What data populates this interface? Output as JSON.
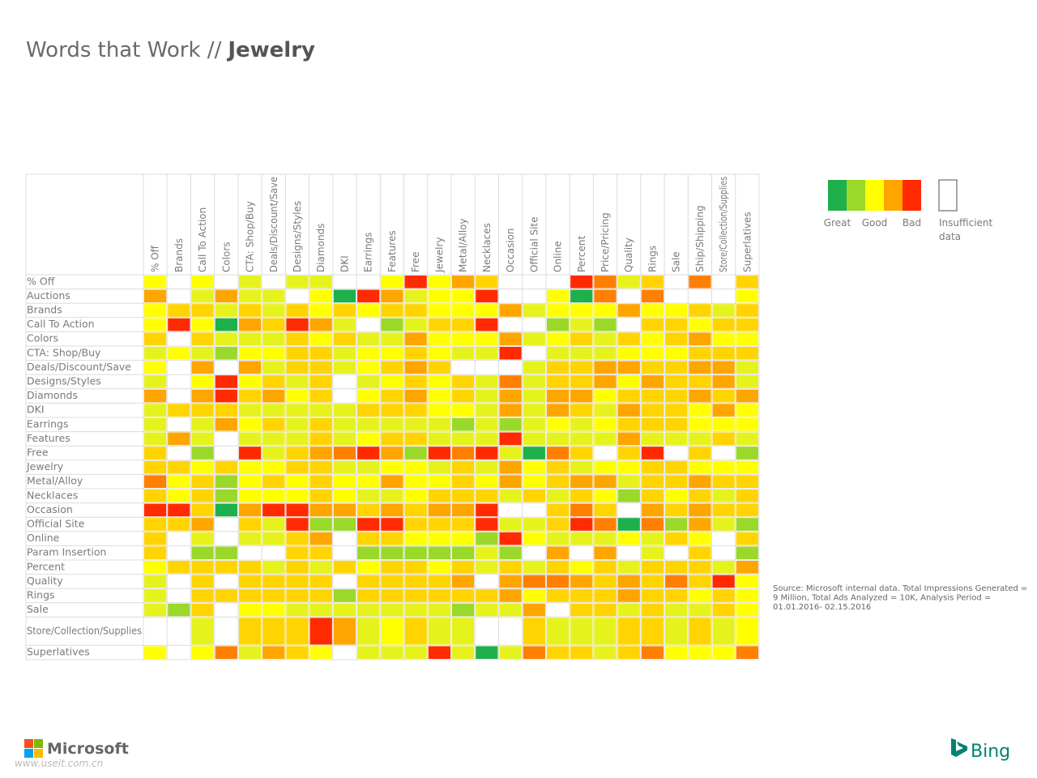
{
  "chart_data": {
    "type": "heatmap",
    "title": "Words that Work //",
    "title_emphasis": "Jewelry",
    "columns": [
      "% Off",
      "Brands",
      "Call To Action",
      "Colors",
      "CTA: Shop/Buy",
      "Deals/Discount/Save",
      "Designs/Styles",
      "Diamonds",
      "DKI",
      "Earrings",
      "Features",
      "Free",
      "Jewelry",
      "Metal/Alloy",
      "Necklaces",
      "Occasion",
      "Official Site",
      "Online",
      "Percent",
      "Price/Pricing",
      "Quality",
      "Rings",
      "Sale",
      "Ship/Shipping",
      "Store/Collection/Supplies",
      "Superlatives"
    ],
    "rows": [
      "% Off",
      "Auctions",
      "Brands",
      "Call To Action",
      "Colors",
      "CTA: Shop/Buy",
      "Deals/Discount/Save",
      "Designs/Styles",
      "Diamonds",
      "DKI",
      "Earrings",
      "Features",
      "Free",
      "Jewelry",
      "Metal/Alloy",
      "Necklaces",
      "Occasion",
      "Official Site",
      "Online",
      "Param Insertion",
      "Percent",
      "Quality",
      "Rings",
      "Sale",
      "Store/Collection/Supplies",
      "Superlatives"
    ],
    "cells": [
      [
        "#ffff00",
        null,
        "#ffff00",
        null,
        "#e6f21c",
        null,
        "#e6f21c",
        "#e6f21c",
        null,
        null,
        "#ffff00",
        "#ff2a00",
        "#ffff00",
        "#ffa500",
        "#ffd400",
        null,
        null,
        null,
        "#ff2a00",
        "#ff7f00",
        "#e6f21c",
        "#ffd400",
        null,
        "#ff7f00",
        null,
        "#ffd400"
      ],
      [
        "#ffa500",
        null,
        "#e6f21c",
        "#ffa500",
        "#e6f21c",
        "#e6f21c",
        null,
        "#ffff00",
        "#1db04b",
        "#ff2a00",
        "#ffa500",
        "#e6f21c",
        "#ffff00",
        "#ffff00",
        "#ff2a00",
        null,
        null,
        "#ffff00",
        "#1db04b",
        "#ff7f00",
        null,
        "#ff7f00",
        null,
        null,
        null,
        "#ffff00"
      ],
      [
        "#ffff00",
        "#ffd400",
        "#ffd400",
        "#e6f21c",
        "#ffd400",
        "#e6f21c",
        "#ffd400",
        "#ffff00",
        "#ffd400",
        "#ffff00",
        "#ffd400",
        "#ffd400",
        "#ffff00",
        "#ffff00",
        "#ffff00",
        "#ffa500",
        "#e6f21c",
        "#ffff00",
        "#ffff00",
        "#ffff00",
        "#ffa500",
        "#ffff00",
        "#ffff00",
        "#ffd400",
        "#e6f21c",
        "#ffd400"
      ],
      [
        "#ffff00",
        "#ff2a00",
        "#ffff00",
        "#1db04b",
        "#ffa500",
        "#ffd400",
        "#ff2a00",
        "#ffa500",
        "#e6f21c",
        null,
        "#9ad82a",
        "#e6f21c",
        "#ffd400",
        "#ffd400",
        "#ff2a00",
        null,
        null,
        "#9ad82a",
        "#e6f21c",
        "#9ad82a",
        null,
        "#ffd400",
        "#ffd400",
        "#ffff00",
        "#ffd400",
        "#ffd400"
      ],
      [
        "#ffd400",
        null,
        "#ffd400",
        "#e6f21c",
        "#e6f21c",
        "#e6f21c",
        "#ffd400",
        "#ffff00",
        "#ffd400",
        "#e6f21c",
        "#e6f21c",
        "#ffa500",
        "#ffff00",
        "#ffff00",
        "#ffff00",
        "#ffa500",
        "#e6f21c",
        "#ffff00",
        "#ffd400",
        "#e6f21c",
        "#ffd400",
        "#ffff00",
        "#ffd400",
        "#ffa500",
        "#ffff00",
        "#ffff00"
      ],
      [
        "#e6f21c",
        "#ffff00",
        "#e6f21c",
        "#9ad82a",
        "#ffff00",
        "#ffff00",
        "#ffd400",
        "#ffd400",
        "#e6f21c",
        "#ffff00",
        "#ffff00",
        "#ffd400",
        "#ffff00",
        "#e6f21c",
        "#e6f21c",
        "#ff2a00",
        null,
        "#e6f21c",
        "#e6f21c",
        "#e6f21c",
        "#ffff00",
        "#ffff00",
        "#ffff00",
        "#ffd400",
        "#ffd400",
        "#ffd400"
      ],
      [
        "#ffff00",
        null,
        "#ffa500",
        null,
        "#ffa500",
        "#e6f21c",
        "#ffd400",
        "#ffd400",
        "#e6f21c",
        "#ffff00",
        "#ffd400",
        "#ffa500",
        "#ffd400",
        null,
        null,
        null,
        "#e6f21c",
        "#ffd400",
        "#ffd400",
        "#ffa500",
        "#ffa500",
        "#ffd400",
        "#ffd400",
        "#ffa500",
        "#ffa500",
        "#e6f21c"
      ],
      [
        "#e6f21c",
        null,
        "#ffff00",
        "#ff2a00",
        "#ffff00",
        "#ffd400",
        "#e6f21c",
        "#ffd400",
        null,
        "#e6f21c",
        "#ffff00",
        "#ffd400",
        "#ffff00",
        "#ffd400",
        "#e6f21c",
        "#ff7f00",
        "#e6f21c",
        "#ffd400",
        "#ffd400",
        "#ffa500",
        "#ffff00",
        "#ffa500",
        "#ffd400",
        "#ffd400",
        "#ffa500",
        "#e6f21c"
      ],
      [
        "#ffa500",
        null,
        "#ffa500",
        "#ff2a00",
        "#ffd400",
        "#ffa500",
        "#ffff00",
        "#ffd400",
        null,
        "#ffff00",
        "#ffd400",
        "#ffa500",
        "#ffff00",
        "#ffd400",
        "#e6f21c",
        "#ffa500",
        "#e6f21c",
        "#ffa500",
        "#ffa500",
        "#ffff00",
        "#ffd400",
        "#ffd400",
        "#ffd400",
        "#ffa500",
        "#ffd400",
        "#ffa500"
      ],
      [
        "#e6f21c",
        "#ffd400",
        "#ffd400",
        "#ffd400",
        "#e6f21c",
        "#e6f21c",
        "#e6f21c",
        "#e6f21c",
        "#e6f21c",
        "#ffd400",
        "#ffd400",
        "#ffd400",
        "#ffff00",
        "#ffff00",
        "#e6f21c",
        "#ffa500",
        "#e6f21c",
        "#ffa500",
        "#ffd400",
        "#e6f21c",
        "#ffa500",
        "#ffd400",
        "#ffd400",
        "#ffff00",
        "#ffa500",
        "#ffff00"
      ],
      [
        "#e6f21c",
        null,
        "#e6f21c",
        "#ffa500",
        "#ffff00",
        "#ffd400",
        "#e6f21c",
        "#ffd400",
        "#e6f21c",
        "#e6f21c",
        "#e6f21c",
        "#e6f21c",
        "#e6f21c",
        "#9ad82a",
        "#e6f21c",
        "#9ad82a",
        "#e6f21c",
        "#ffff00",
        "#e6f21c",
        "#ffff00",
        "#ffd400",
        "#ffd400",
        "#ffd400",
        "#ffff00",
        "#ffff00",
        "#ffff00"
      ],
      [
        "#e6f21c",
        "#ffa500",
        "#e6f21c",
        null,
        "#e6f21c",
        "#e6f21c",
        "#e6f21c",
        "#ffd400",
        "#e6f21c",
        "#ffff00",
        "#ffd400",
        "#ffd400",
        "#e6f21c",
        "#e6f21c",
        "#e6f21c",
        "#ff2a00",
        "#e6f21c",
        "#e6f21c",
        "#e6f21c",
        "#e6f21c",
        "#ffa500",
        "#e6f21c",
        "#e6f21c",
        "#e6f21c",
        "#ffd400",
        "#e6f21c"
      ],
      [
        "#ffd400",
        null,
        "#9ad82a",
        null,
        "#ff2a00",
        "#e6f21c",
        "#ffd400",
        "#ffa500",
        "#ff7f00",
        "#ff2a00",
        "#ffa500",
        "#9ad82a",
        "#ff2a00",
        "#ff7f00",
        "#ff2a00",
        "#e6f21c",
        "#1db04b",
        "#ff7f00",
        "#ffd400",
        null,
        "#ffd400",
        "#ff2a00",
        null,
        "#ffd400",
        null,
        "#9ad82a"
      ],
      [
        "#ffd400",
        "#ffd400",
        "#ffff00",
        "#ffd400",
        "#ffff00",
        "#ffff00",
        "#ffd400",
        "#ffd400",
        "#e6f21c",
        "#e6f21c",
        "#ffff00",
        "#ffff00",
        "#e6f21c",
        "#ffd400",
        "#e6f21c",
        "#ffa500",
        "#ffff00",
        "#ffd400",
        "#e6f21c",
        "#ffff00",
        "#ffff00",
        "#ffd400",
        "#ffd400",
        "#ffff00",
        "#ffff00",
        "#ffff00"
      ],
      [
        "#ff7f00",
        "#ffff00",
        "#ffd400",
        "#9ad82a",
        "#ffff00",
        "#ffd400",
        "#ffff00",
        "#ffd400",
        "#ffff00",
        "#ffff00",
        "#ffa500",
        "#ffff00",
        "#ffff00",
        "#ffd400",
        "#ffff00",
        "#ffa500",
        "#ffff00",
        "#ffd400",
        "#ffa500",
        "#ffa500",
        "#e6f21c",
        "#ffd400",
        "#ffd400",
        "#ffa500",
        "#ffd400",
        "#ffd400"
      ],
      [
        "#ffd400",
        "#ffff00",
        "#ffd400",
        "#9ad82a",
        "#ffff00",
        "#ffff00",
        "#ffff00",
        "#ffd400",
        "#ffff00",
        "#e6f21c",
        "#e6f21c",
        "#ffff00",
        "#ffd400",
        "#ffd400",
        "#ffd400",
        "#e6f21c",
        "#ffd400",
        "#e6f21c",
        "#ffd400",
        "#ffff00",
        "#9ad82a",
        "#ffd400",
        "#ffff00",
        "#ffd400",
        "#e6f21c",
        "#ffd400"
      ],
      [
        "#ff2a00",
        "#ff2a00",
        "#ffd400",
        "#1db04b",
        "#ffa500",
        "#ff2a00",
        "#ff2a00",
        "#ffa500",
        "#ffa500",
        "#ffd400",
        "#ffa500",
        "#ffd400",
        "#ffa500",
        "#ffa500",
        "#ff2a00",
        null,
        null,
        "#ffd400",
        "#ff7f00",
        "#ffd400",
        null,
        "#ffa500",
        "#ffd400",
        "#ffa500",
        "#ffd400",
        "#ffd400"
      ],
      [
        "#ffd400",
        "#ffd400",
        "#ffa500",
        null,
        "#ffd400",
        "#e6f21c",
        "#ff2a00",
        "#9ad82a",
        "#9ad82a",
        "#ff2a00",
        "#ff2a00",
        "#ffd400",
        "#ffd400",
        "#ffd400",
        "#ff2a00",
        "#e6f21c",
        "#e6f21c",
        "#ffd400",
        "#ff2a00",
        "#ff7f00",
        "#1db04b",
        "#ff7f00",
        "#9ad82a",
        "#ffa500",
        "#e6f21c",
        "#9ad82a"
      ],
      [
        "#ffd400",
        null,
        "#e6f21c",
        null,
        "#e6f21c",
        "#e6f21c",
        "#ffd400",
        "#ffa500",
        null,
        "#ffd400",
        "#ffd400",
        "#ffff00",
        "#ffff00",
        "#ffff00",
        "#9ad82a",
        "#ff2a00",
        "#ffff00",
        "#e6f21c",
        "#e6f21c",
        "#e6f21c",
        "#ffff00",
        "#e6f21c",
        "#ffd400",
        "#ffff00",
        null,
        "#ffd400"
      ],
      [
        "#ffd400",
        null,
        "#9ad82a",
        "#9ad82a",
        null,
        null,
        "#ffd400",
        "#ffd400",
        null,
        "#9ad82a",
        "#9ad82a",
        "#9ad82a",
        "#9ad82a",
        "#9ad82a",
        "#e6f21c",
        "#9ad82a",
        null,
        "#ffa500",
        null,
        "#ffa500",
        null,
        "#e6f21c",
        null,
        "#ffd400",
        null,
        "#9ad82a"
      ],
      [
        "#ffff00",
        "#ffd400",
        "#ffd400",
        "#ffd400",
        "#ffd400",
        "#e6f21c",
        "#ffd400",
        "#e6f21c",
        "#ffd400",
        "#ffff00",
        "#ffd400",
        "#ffd400",
        "#ffff00",
        "#ffd400",
        "#e6f21c",
        "#ffd400",
        "#e6f21c",
        "#ffd400",
        "#ffff00",
        "#ffd400",
        "#e6f21c",
        "#ffd400",
        "#ffd400",
        "#ffd400",
        "#e6f21c",
        "#ffa500"
      ],
      [
        "#e6f21c",
        null,
        "#ffd400",
        null,
        "#ffd400",
        "#ffd400",
        "#ffd400",
        "#ffd400",
        null,
        "#ffd400",
        "#ffd400",
        "#ffd400",
        "#ffd400",
        "#ffa500",
        null,
        "#ffa500",
        "#ff7f00",
        "#ff7f00",
        "#ffa500",
        "#ffd400",
        "#ffa500",
        "#ffd400",
        "#ff7f00",
        "#ffd400",
        "#ff2a00",
        "#ffff00"
      ],
      [
        "#e6f21c",
        null,
        "#ffd400",
        "#ffd400",
        "#ffd400",
        "#ffd400",
        "#ffd400",
        "#ffd400",
        "#9ad82a",
        "#ffd400",
        "#ffd400",
        "#ffd400",
        "#ffd400",
        "#ffd400",
        "#ffd400",
        "#ffa500",
        "#ffff00",
        "#ffd400",
        "#ffd400",
        "#ffd400",
        "#ffa500",
        "#ffd400",
        "#ffd400",
        "#ffff00",
        "#ffd400",
        "#ffff00"
      ],
      [
        "#e6f21c",
        "#9ad82a",
        "#ffd400",
        null,
        "#ffff00",
        "#ffff00",
        "#e6f21c",
        "#e6f21c",
        "#e6f21c",
        "#e6f21c",
        "#e6f21c",
        "#e6f21c",
        "#e6f21c",
        "#9ad82a",
        "#e6f21c",
        "#e6f21c",
        "#ffa500",
        null,
        "#ffd400",
        "#ffd400",
        "#e6f21c",
        "#ffd400",
        "#e6f21c",
        "#e6f21c",
        "#ffd400",
        "#ffff00"
      ],
      [
        null,
        null,
        "#e6f21c",
        null,
        "#ffd400",
        "#ffd400",
        "#ffd400",
        "#ff2a00",
        "#ffa500",
        "#e6f21c",
        "#ffff00",
        "#ffd400",
        "#e6f21c",
        "#e6f21c",
        null,
        null,
        "#ffd400",
        "#e6f21c",
        "#e6f21c",
        "#e6f21c",
        "#ffd400",
        "#ffd400",
        "#e6f21c",
        "#ffd400",
        "#e6f21c",
        "#ffff00"
      ],
      [
        "#ffff00",
        null,
        "#ffff00",
        "#ff7f00",
        "#e6f21c",
        "#ffa500",
        "#ffd400",
        "#ffff00",
        null,
        "#e6f21c",
        "#e6f21c",
        "#e6f21c",
        "#ff2a00",
        "#e6f21c",
        "#1db04b",
        "#e6f21c",
        "#ff7f00",
        "#ffd400",
        "#ffd400",
        "#e6f21c",
        "#ffd400",
        "#ff7f00",
        "#ffff00",
        "#ffff00",
        "#ffff00",
        "#ff7f00"
      ]
    ],
    "legend": {
      "colors": [
        "#1db04b",
        "#9ad82a",
        "#ffff00",
        "#ffa500",
        "#ff2a00"
      ],
      "labels": [
        {
          "color_index": 0,
          "label": "Great"
        },
        {
          "color_index": 2,
          "label": "Good"
        },
        {
          "color_index": 4,
          "label": "Bad"
        }
      ],
      "insufficient_label": [
        "Insufficient",
        "data"
      ]
    },
    "source_note": [
      "Source: Microsoft internal data. Total Impressions Generated =",
      "9 Million, Total Ads Analyzed = 10K, Analysis Period =",
      "01.01.2016- 02.15.2016"
    ],
    "footer_left": "Microsoft",
    "footer_right": "Bing",
    "watermark": "www.useit.com.cn"
  }
}
